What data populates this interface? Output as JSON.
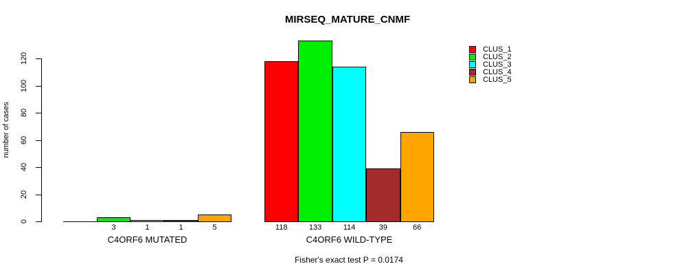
{
  "chart_data": {
    "type": "bar",
    "title": "MIRSEQ_MATURE_CNMF",
    "ylabel": "number of cases",
    "xlabel": "",
    "yticks": [
      0,
      20,
      40,
      60,
      80,
      100,
      120
    ],
    "ylim": [
      0,
      133
    ],
    "grid": false,
    "legend_position": "top-right",
    "categories": [
      "C4ORF6 MUTATED",
      "C4ORF6 WILD-TYPE"
    ],
    "series": [
      {
        "name": "CLUS_1",
        "color": "#ff0000",
        "values": [
          0,
          118
        ]
      },
      {
        "name": "CLUS_2",
        "color": "#00ee00",
        "values": [
          3,
          133
        ]
      },
      {
        "name": "CLUS_3",
        "color": "#00ffff",
        "values": [
          1,
          114
        ]
      },
      {
        "name": "CLUS_4",
        "color": "#a52a2a",
        "values": [
          1,
          39
        ]
      },
      {
        "name": "CLUS_5",
        "color": "#ffa500",
        "values": [
          5,
          66
        ]
      }
    ],
    "value_labels": [
      [
        "",
        "3",
        "1",
        "1",
        "5"
      ],
      [
        "118",
        "133",
        "114",
        "39",
        "66"
      ]
    ],
    "annotation": "Fisher's exact test P = 0.0174"
  }
}
